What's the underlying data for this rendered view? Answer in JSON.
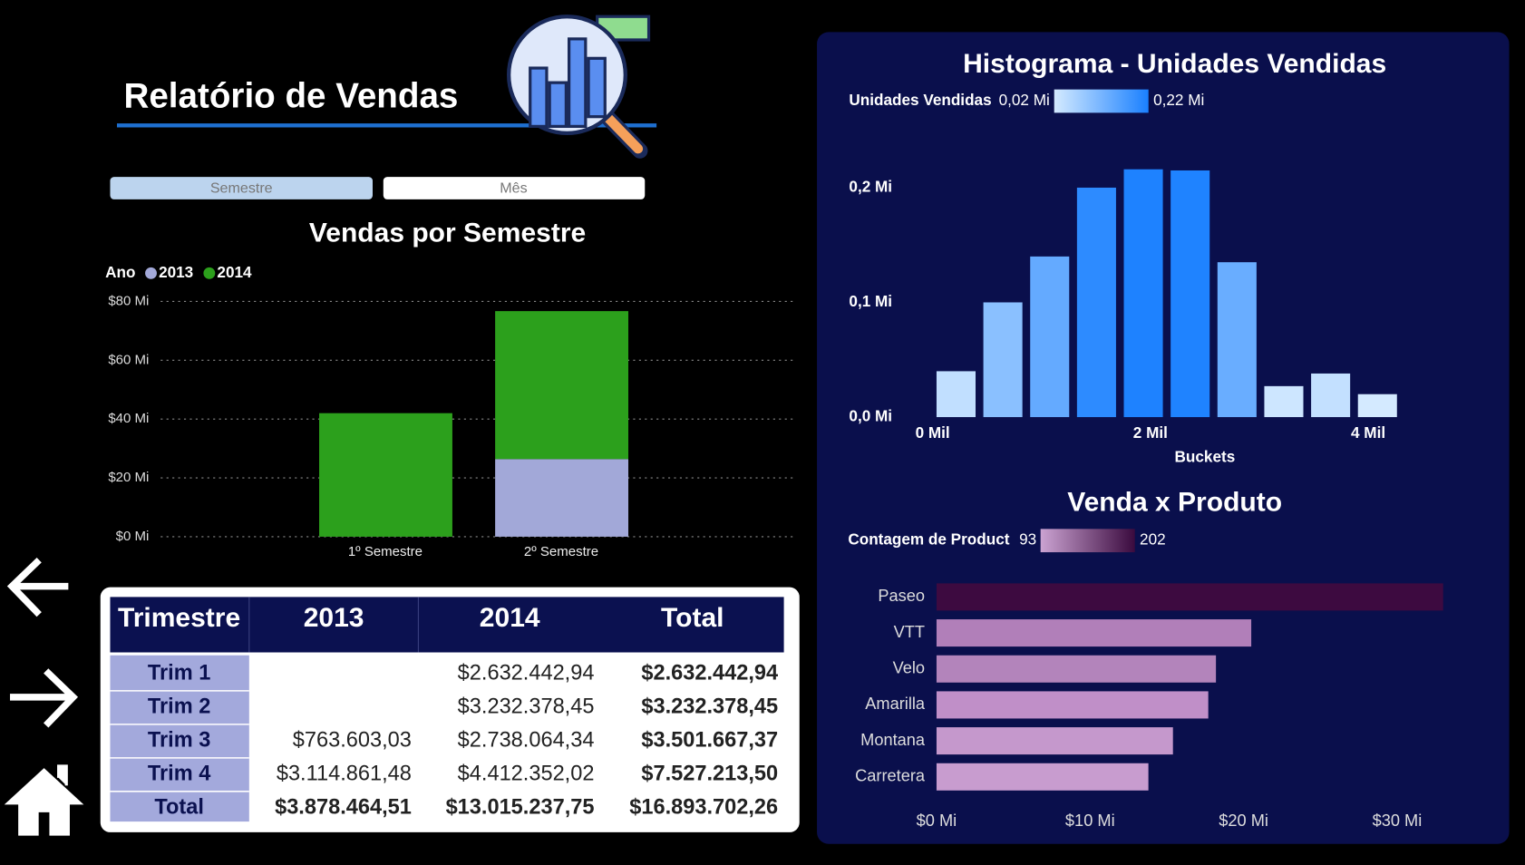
{
  "header": {
    "title": "Relatório de Vendas",
    "buttons": [
      "Semestre",
      "Mês"
    ]
  },
  "chart_data": [
    {
      "type": "bar",
      "stacked": true,
      "title": "Vendas por Semestre",
      "legend_title": "Ano",
      "categories": [
        "1º Semestre",
        "2º Semestre"
      ],
      "series": [
        {
          "name": "2013",
          "color": "#a2a8d8",
          "values": [
            null,
            26.4
          ]
        },
        {
          "name": "2014",
          "color": "#2ca01c",
          "values": [
            42,
            50.3
          ]
        }
      ],
      "ylim": [
        0,
        80
      ],
      "yticks": [
        {
          "value": 0,
          "label": "$0 Mi"
        },
        {
          "value": 20,
          "label": "$20 Mi"
        },
        {
          "value": 40,
          "label": "$40 Mi"
        },
        {
          "value": 60,
          "label": "$60 Mi"
        },
        {
          "value": 80,
          "label": "$80 Mi"
        }
      ],
      "grid": true
    },
    {
      "type": "histogram",
      "title": "Histograma - Unidades Vendidas",
      "xlabel": "Buckets",
      "legend": {
        "title": "Unidades Vendidas",
        "min": {
          "value": 0.02,
          "label": "0,02 Mi"
        },
        "max": {
          "value": 0.22,
          "label": "0,22 Mi"
        },
        "colors": [
          "#d4eaff",
          "#1a80ff"
        ]
      },
      "bins": [
        0,
        0.43,
        0.86,
        1.29,
        1.72,
        2.15,
        2.58,
        3.01,
        3.44,
        3.87,
        4.3
      ],
      "values": [
        0.04,
        0.1,
        0.14,
        0.2,
        0.216,
        0.215,
        0.135,
        0.027,
        0.038,
        0.02
      ],
      "xlim": [
        -0.1,
        4.4
      ],
      "ylim": [
        0,
        0.22
      ],
      "xticks": [
        {
          "value": 0,
          "label": "0 Mil"
        },
        {
          "value": 2,
          "label": "2 Mil"
        },
        {
          "value": 4,
          "label": "4 Mil"
        }
      ],
      "yticks": [
        {
          "value": 0,
          "label": "0,0 Mi"
        },
        {
          "value": 0.1,
          "label": "0,1 Mi"
        },
        {
          "value": 0.2,
          "label": "0,2 Mi"
        }
      ]
    },
    {
      "type": "barh",
      "title": "Venda x Produto",
      "legend": {
        "title": "Contagem de Product",
        "min": 93,
        "max": 202,
        "colors": [
          "#cba3d2",
          "#3a0a3e"
        ]
      },
      "categories": [
        "Paseo",
        "VTT",
        "Velo",
        "Amarilla",
        "Montana",
        "Carretera"
      ],
      "values": [
        33,
        20.5,
        18.2,
        17.7,
        15.4,
        13.8
      ],
      "colors": [
        "#3d0a40",
        "#b17fb9",
        "#b384bb",
        "#c08fc8",
        "#c598cc",
        "#c89ccf"
      ],
      "xlim": [
        0,
        33.5
      ],
      "xticks": [
        {
          "value": 0,
          "label": "$0 Mi"
        },
        {
          "value": 10,
          "label": "$10 Mi"
        },
        {
          "value": 20,
          "label": "$20 Mi"
        },
        {
          "value": 30,
          "label": "$30 Mi"
        }
      ]
    }
  ],
  "table": {
    "header": [
      "Trimestre",
      "2013",
      "2014",
      "Total"
    ],
    "rows": [
      [
        "Trim 1",
        null,
        "$2.632.442,94",
        "$2.632.442,94"
      ],
      [
        "Trim 2",
        null,
        "$3.232.378,45",
        "$3.232.378,45"
      ],
      [
        "Trim 3",
        "$763.603,03",
        "$2.738.064,34",
        "$3.501.667,37"
      ],
      [
        "Trim 4",
        "$3.114.861,48",
        "$4.412.352,02",
        "$7.527.213,50"
      ],
      [
        "Total",
        "$3.878.464,51",
        "$13.015.237,75",
        "$16.893.702,26"
      ]
    ]
  }
}
